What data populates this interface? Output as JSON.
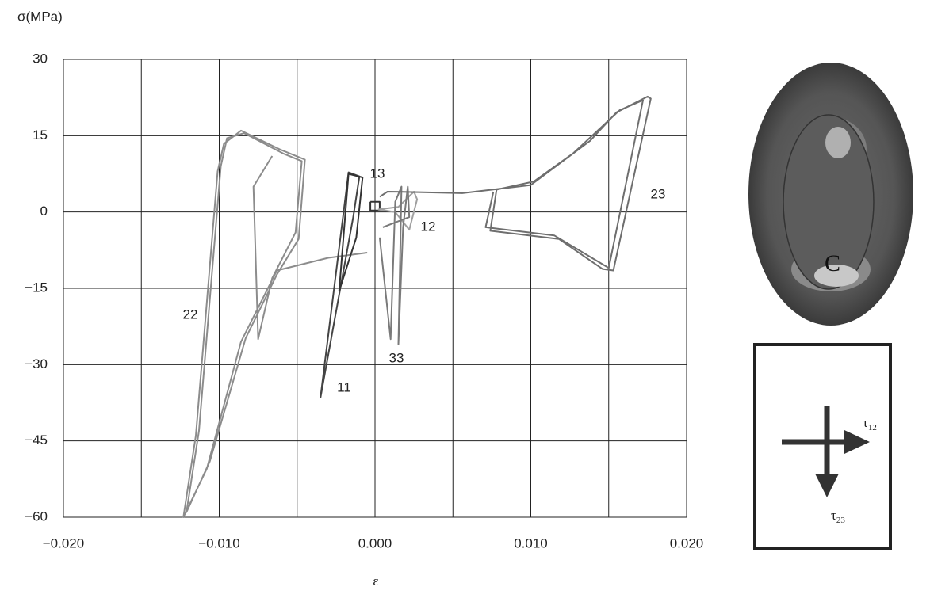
{
  "chart_data": {
    "type": "line",
    "y_label": "σ(MPa)",
    "x_label": "ε",
    "xlim": [
      -0.02,
      0.02
    ],
    "ylim": [
      -60,
      30
    ],
    "xticks": [
      {
        "value": -0.02,
        "label": "−0.020"
      },
      {
        "value": -0.015,
        "label": null
      },
      {
        "value": -0.01,
        "label": "−0.010"
      },
      {
        "value": -0.005,
        "label": null
      },
      {
        "value": 0,
        "label": "0.000"
      },
      {
        "value": 0.005,
        "label": null
      },
      {
        "value": 0.01,
        "label": "0.010"
      },
      {
        "value": 0.015,
        "label": null
      },
      {
        "value": 0.02,
        "label": "0.020"
      }
    ],
    "yticks": [
      30,
      15,
      0,
      {
        "value": -15,
        "label": "−15"
      },
      {
        "value": -30,
        "label": "−30"
      },
      {
        "value": -45,
        "label": "−45"
      },
      {
        "value": -60,
        "label": "−60"
      }
    ],
    "grid": true,
    "series": [
      {
        "name": "22",
        "color": "#8c8c8c",
        "x": [
          -0.0005,
          -0.003,
          -0.0063,
          -0.0086,
          -0.0108,
          -0.0123,
          -0.0115,
          -0.0101,
          -0.0097,
          -0.0086,
          -0.0061,
          -0.0045,
          -0.0049,
          -0.0063,
          -0.0083,
          -0.0106,
          -0.0121,
          -0.0113,
          -0.0099,
          -0.0095,
          -0.0084,
          -0.0059,
          -0.0047,
          -0.0051,
          -0.0066,
          -0.0075,
          -0.0078,
          -0.0066
        ],
        "values": [
          -8,
          -9,
          -11.5,
          -25.5,
          -50.5,
          -60,
          -44,
          8,
          13.4,
          16,
          12.3,
          10.3,
          -5.3,
          -12.3,
          -24.8,
          -49,
          -59,
          -43,
          9,
          14.5,
          15.5,
          11.5,
          10,
          -4,
          -13,
          -25,
          5,
          11
        ]
      },
      {
        "name": "11",
        "color": "#444444",
        "x": [
          -0.0035,
          -0.0017,
          -0.001,
          -0.0014,
          -0.0035
        ],
        "values": [
          -36.5,
          7.8,
          7,
          -1,
          -36.5
        ]
      },
      {
        "name": "13",
        "color": "#333333",
        "x": [
          -0.0023,
          -0.0017,
          -0.0008,
          -0.0012,
          -0.0023,
          null,
          -0.0003,
          0.0003,
          0.0003,
          -0.0003,
          -0.0003
        ],
        "values": [
          -15.5,
          7.5,
          6.8,
          -5,
          -15.5,
          null,
          2,
          2,
          0.3,
          0.3,
          2
        ]
      },
      {
        "name": "12",
        "color": "#a0a0a0",
        "x": [
          0.0002,
          0.0015,
          0.0025,
          0.0027,
          0.0022,
          0.0013,
          0.0002
        ],
        "values": [
          0.5,
          1,
          4,
          2.5,
          -3.5,
          0,
          0.5
        ]
      },
      {
        "name": "33",
        "color": "#7a7a7a",
        "x": [
          0.0003,
          0.001,
          0.0013,
          0.0017,
          0.0015,
          0.0018,
          0.0021,
          0.0022,
          0.0005
        ],
        "values": [
          -5,
          -25,
          2,
          5,
          -26,
          -3,
          5,
          -1,
          -3
        ]
      },
      {
        "name": "23",
        "color": "#6e6e6e",
        "x": [
          0.0003,
          0.0008,
          0.0028,
          0.0056,
          0.01,
          0.0125,
          0.0138,
          0.0155,
          0.0175,
          0.0177,
          0.0153,
          0.0146,
          0.0118,
          0.0074,
          0.0078,
          0.0102,
          0.0127,
          0.0157,
          0.0172,
          0.015,
          0.0115,
          0.0071,
          0.0076
        ],
        "values": [
          3,
          4,
          3.9,
          3.7,
          5.3,
          11,
          14,
          19.6,
          22.7,
          22.3,
          -11.5,
          -11.2,
          -5.3,
          -3.7,
          4.4,
          6,
          11.5,
          20,
          22,
          -11,
          -4.6,
          -3,
          4
        ]
      }
    ]
  },
  "inset": {
    "marker": "C",
    "arrow_1": {
      "symbol": "τ",
      "subscript": "12"
    },
    "arrow_2": {
      "symbol": "τ",
      "subscript": "23"
    }
  }
}
